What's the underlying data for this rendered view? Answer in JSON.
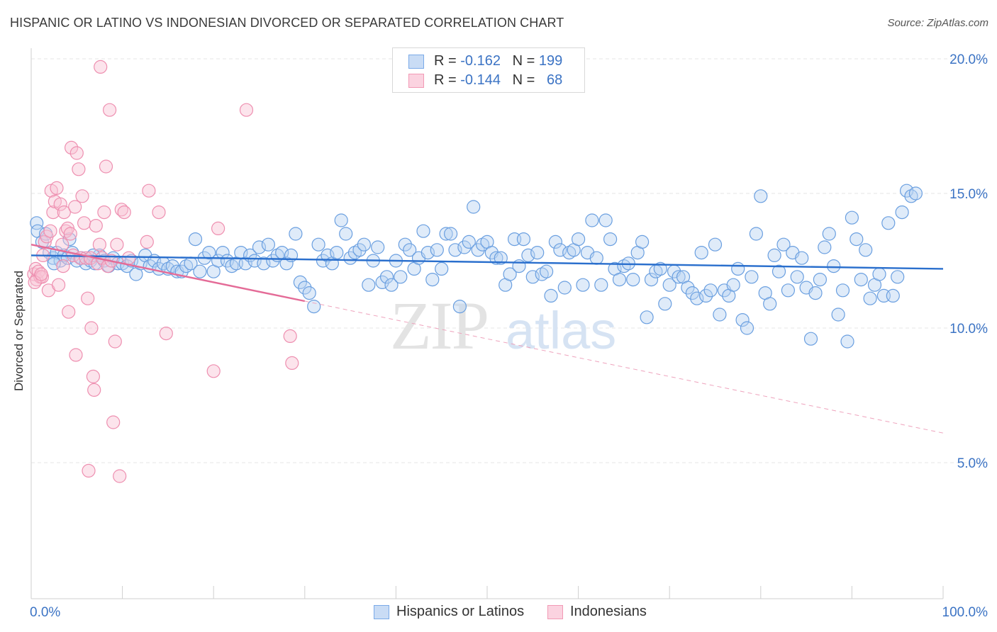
{
  "header": {
    "title": "HISPANIC OR LATINO VS INDONESIAN DIVORCED OR SEPARATED CORRELATION CHART",
    "source": "Source: ZipAtlas.com"
  },
  "watermark": {
    "zip": "ZIP",
    "atlas": "atlas"
  },
  "legend": {
    "r_label": "R =",
    "n_label": "N =",
    "rows": [
      {
        "r": "-0.162",
        "n": "199",
        "color": "#7aaae8"
      },
      {
        "r": "-0.144",
        "n": "68",
        "color": "#f29ab5"
      }
    ]
  },
  "bottom_legend": [
    {
      "label": "Hispanics or Latinos",
      "color": "#7aaae8"
    },
    {
      "label": "Indonesians",
      "color": "#f29ab5"
    }
  ],
  "chart_data": {
    "type": "scatter",
    "title": "HISPANIC OR LATINO VS INDONESIAN DIVORCED OR SEPARATED CORRELATION CHART",
    "xlabel": "",
    "ylabel": "Divorced or Separated",
    "xlim": [
      0,
      100
    ],
    "ylim": [
      0,
      21
    ],
    "x_tick_labels": [
      "0.0%",
      "100.0%"
    ],
    "y_ticks": [
      5,
      10,
      15,
      20
    ],
    "y_tick_labels": [
      "5.0%",
      "10.0%",
      "15.0%",
      "20.0%"
    ],
    "grid": true,
    "legend_position": "top-center",
    "series": [
      {
        "name": "Hispanics or Latinos",
        "color": "#6a9fe0",
        "r": -0.162,
        "n": 199,
        "trend": {
          "x": [
            0,
            100
          ],
          "y": [
            12.7,
            12.2
          ],
          "style": "solid"
        },
        "points": [
          [
            0.6,
            13.9
          ],
          [
            0.7,
            13.6
          ],
          [
            1.2,
            13.2
          ],
          [
            1.6,
            13.5
          ],
          [
            2.0,
            12.8
          ],
          [
            2.4,
            12.6
          ],
          [
            2.8,
            12.8
          ],
          [
            3.2,
            12.5
          ],
          [
            3.6,
            12.7
          ],
          [
            4.0,
            12.6
          ],
          [
            4.5,
            12.8
          ],
          [
            5.0,
            12.5
          ],
          [
            5.5,
            12.6
          ],
          [
            6.0,
            12.4
          ],
          [
            6.5,
            12.5
          ],
          [
            7.0,
            12.4
          ],
          [
            7.5,
            12.7
          ],
          [
            8.0,
            12.5
          ],
          [
            8.5,
            12.3
          ],
          [
            9.0,
            12.6
          ],
          [
            9.5,
            12.4
          ],
          [
            10.0,
            12.4
          ],
          [
            10.5,
            12.3
          ],
          [
            11.0,
            12.5
          ],
          [
            11.5,
            12.0
          ],
          [
            12.0,
            12.4
          ],
          [
            12.5,
            12.7
          ],
          [
            13.0,
            12.3
          ],
          [
            13.5,
            12.5
          ],
          [
            14.0,
            12.2
          ],
          [
            14.5,
            12.4
          ],
          [
            15.0,
            12.2
          ],
          [
            15.5,
            12.3
          ],
          [
            16.0,
            12.1
          ],
          [
            16.5,
            12.1
          ],
          [
            17.0,
            12.3
          ],
          [
            17.5,
            12.4
          ],
          [
            18.0,
            13.3
          ],
          [
            18.5,
            12.1
          ],
          [
            19.0,
            12.6
          ],
          [
            19.5,
            12.8
          ],
          [
            20.0,
            12.1
          ],
          [
            20.5,
            12.5
          ],
          [
            21.0,
            12.8
          ],
          [
            21.5,
            12.5
          ],
          [
            22.0,
            12.3
          ],
          [
            22.5,
            12.4
          ],
          [
            23.0,
            12.8
          ],
          [
            23.5,
            12.4
          ],
          [
            24.0,
            12.7
          ],
          [
            24.5,
            12.5
          ],
          [
            25.0,
            13.0
          ],
          [
            25.5,
            12.4
          ],
          [
            26.0,
            13.1
          ],
          [
            26.5,
            12.5
          ],
          [
            27.0,
            12.7
          ],
          [
            27.5,
            12.8
          ],
          [
            28.0,
            12.4
          ],
          [
            28.5,
            12.7
          ],
          [
            29.0,
            13.5
          ],
          [
            29.5,
            11.7
          ],
          [
            30.0,
            11.5
          ],
          [
            30.5,
            11.3
          ],
          [
            31.0,
            10.8
          ],
          [
            31.5,
            13.1
          ],
          [
            32.0,
            12.5
          ],
          [
            32.5,
            12.7
          ],
          [
            33.0,
            12.4
          ],
          [
            33.5,
            12.8
          ],
          [
            34.0,
            14.0
          ],
          [
            34.5,
            13.5
          ],
          [
            35.0,
            12.6
          ],
          [
            35.5,
            12.8
          ],
          [
            36.0,
            12.9
          ],
          [
            36.5,
            13.1
          ],
          [
            37.0,
            11.6
          ],
          [
            37.5,
            12.5
          ],
          [
            38.0,
            13.0
          ],
          [
            38.5,
            11.7
          ],
          [
            39.0,
            11.9
          ],
          [
            39.5,
            11.6
          ],
          [
            40.0,
            12.5
          ],
          [
            40.5,
            11.9
          ],
          [
            41.0,
            13.1
          ],
          [
            41.5,
            12.9
          ],
          [
            42.0,
            12.2
          ],
          [
            42.5,
            12.6
          ],
          [
            43.0,
            13.6
          ],
          [
            43.5,
            12.8
          ],
          [
            44.0,
            11.8
          ],
          [
            44.5,
            12.9
          ],
          [
            45.0,
            12.2
          ],
          [
            45.5,
            13.5
          ],
          [
            46.0,
            13.5
          ],
          [
            46.5,
            12.9
          ],
          [
            47.0,
            10.8
          ],
          [
            47.5,
            13.0
          ],
          [
            48.0,
            13.2
          ],
          [
            48.5,
            14.5
          ],
          [
            49.0,
            12.9
          ],
          [
            49.5,
            13.1
          ],
          [
            50.0,
            13.2
          ],
          [
            50.5,
            12.8
          ],
          [
            51.0,
            12.6
          ],
          [
            51.5,
            12.6
          ],
          [
            52.0,
            11.6
          ],
          [
            52.5,
            12.0
          ],
          [
            53.0,
            13.3
          ],
          [
            53.5,
            12.3
          ],
          [
            54.0,
            13.3
          ],
          [
            54.5,
            12.7
          ],
          [
            55.0,
            11.9
          ],
          [
            55.5,
            12.8
          ],
          [
            56.0,
            12.0
          ],
          [
            56.5,
            12.1
          ],
          [
            57.0,
            11.2
          ],
          [
            57.5,
            13.2
          ],
          [
            58.0,
            12.9
          ],
          [
            58.5,
            11.5
          ],
          [
            59.0,
            12.8
          ],
          [
            59.5,
            12.9
          ],
          [
            60.0,
            13.3
          ],
          [
            60.5,
            11.6
          ],
          [
            61.0,
            12.8
          ],
          [
            61.5,
            14.0
          ],
          [
            62.0,
            12.6
          ],
          [
            62.5,
            11.6
          ],
          [
            63.0,
            14.0
          ],
          [
            63.5,
            13.3
          ],
          [
            64.0,
            12.2
          ],
          [
            64.5,
            11.8
          ],
          [
            65.0,
            12.3
          ],
          [
            65.5,
            12.4
          ],
          [
            66.0,
            11.8
          ],
          [
            66.5,
            12.8
          ],
          [
            67.0,
            13.2
          ],
          [
            67.5,
            10.4
          ],
          [
            68.0,
            11.8
          ],
          [
            68.5,
            12.1
          ],
          [
            69.0,
            12.2
          ],
          [
            69.5,
            10.9
          ],
          [
            70.0,
            11.6
          ],
          [
            70.5,
            12.1
          ],
          [
            71.0,
            11.9
          ],
          [
            71.5,
            11.9
          ],
          [
            72.0,
            11.5
          ],
          [
            72.5,
            11.3
          ],
          [
            73.0,
            11.1
          ],
          [
            73.5,
            12.8
          ],
          [
            74.0,
            11.2
          ],
          [
            74.5,
            11.4
          ],
          [
            75.0,
            13.1
          ],
          [
            75.5,
            10.5
          ],
          [
            76.0,
            11.4
          ],
          [
            76.5,
            11.2
          ],
          [
            77.0,
            11.6
          ],
          [
            77.5,
            12.2
          ],
          [
            78.0,
            10.3
          ],
          [
            78.5,
            10.0
          ],
          [
            79.0,
            11.9
          ],
          [
            79.5,
            13.5
          ],
          [
            80.0,
            14.9
          ],
          [
            80.5,
            11.3
          ],
          [
            81.0,
            10.9
          ],
          [
            81.5,
            12.7
          ],
          [
            82.0,
            12.1
          ],
          [
            82.5,
            13.1
          ],
          [
            83.0,
            11.4
          ],
          [
            83.5,
            12.8
          ],
          [
            84.0,
            11.9
          ],
          [
            84.5,
            12.6
          ],
          [
            85.0,
            11.5
          ],
          [
            85.5,
            9.6
          ],
          [
            86.0,
            11.3
          ],
          [
            86.5,
            11.8
          ],
          [
            87.0,
            13.0
          ],
          [
            87.5,
            13.5
          ],
          [
            88.0,
            12.3
          ],
          [
            88.5,
            10.5
          ],
          [
            89.0,
            11.4
          ],
          [
            89.5,
            9.5
          ],
          [
            90.0,
            14.1
          ],
          [
            90.5,
            13.3
          ],
          [
            91.0,
            11.8
          ],
          [
            91.5,
            12.9
          ],
          [
            92.0,
            11.1
          ],
          [
            92.5,
            11.6
          ],
          [
            93.0,
            12.0
          ],
          [
            93.5,
            11.2
          ],
          [
            94.0,
            13.9
          ],
          [
            94.5,
            11.2
          ],
          [
            95.0,
            11.9
          ],
          [
            95.5,
            14.3
          ],
          [
            96.0,
            15.1
          ],
          [
            96.5,
            14.9
          ],
          [
            97.0,
            15.0
          ],
          [
            2.5,
            12.4
          ],
          [
            4.2,
            13.3
          ],
          [
            6.8,
            12.7
          ]
        ]
      },
      {
        "name": "Indonesians",
        "color": "#f08db0",
        "r": -0.144,
        "n": 68,
        "trend": {
          "x": [
            0,
            30,
            100
          ],
          "y": [
            13.1,
            11.0,
            6.1
          ],
          "style": "solid-then-dashed",
          "solid_until": 30
        },
        "points": [
          [
            0.3,
            12.0
          ],
          [
            0.5,
            12.2
          ],
          [
            0.6,
            11.8
          ],
          [
            0.8,
            12.1
          ],
          [
            1.0,
            11.9
          ],
          [
            1.2,
            11.9
          ],
          [
            1.3,
            12.7
          ],
          [
            1.5,
            13.2
          ],
          [
            1.7,
            13.4
          ],
          [
            1.9,
            11.4
          ],
          [
            2.1,
            13.6
          ],
          [
            2.2,
            15.1
          ],
          [
            2.4,
            14.3
          ],
          [
            2.6,
            14.7
          ],
          [
            2.8,
            15.2
          ],
          [
            3.0,
            11.6
          ],
          [
            3.2,
            14.6
          ],
          [
            3.4,
            13.1
          ],
          [
            3.5,
            12.3
          ],
          [
            3.6,
            14.3
          ],
          [
            3.8,
            13.6
          ],
          [
            4.0,
            13.7
          ],
          [
            4.1,
            10.6
          ],
          [
            4.3,
            13.5
          ],
          [
            4.4,
            16.7
          ],
          [
            4.6,
            12.7
          ],
          [
            4.8,
            14.5
          ],
          [
            4.9,
            9.0
          ],
          [
            5.0,
            16.5
          ],
          [
            5.2,
            15.9
          ],
          [
            5.4,
            12.6
          ],
          [
            5.6,
            14.9
          ],
          [
            5.8,
            13.9
          ],
          [
            6.0,
            12.6
          ],
          [
            6.2,
            11.1
          ],
          [
            6.3,
            4.7
          ],
          [
            6.5,
            12.6
          ],
          [
            6.6,
            10.0
          ],
          [
            6.8,
            8.2
          ],
          [
            6.9,
            7.7
          ],
          [
            7.1,
            13.8
          ],
          [
            7.3,
            12.4
          ],
          [
            7.5,
            13.1
          ],
          [
            7.6,
            19.7
          ],
          [
            7.8,
            12.6
          ],
          [
            8.0,
            14.3
          ],
          [
            8.2,
            16.0
          ],
          [
            8.4,
            12.3
          ],
          [
            8.6,
            18.1
          ],
          [
            8.8,
            12.5
          ],
          [
            9.0,
            6.5
          ],
          [
            9.2,
            9.5
          ],
          [
            9.4,
            13.1
          ],
          [
            9.7,
            4.5
          ],
          [
            9.9,
            14.4
          ],
          [
            10.2,
            14.3
          ],
          [
            10.7,
            12.6
          ],
          [
            12.7,
            13.2
          ],
          [
            12.9,
            15.1
          ],
          [
            14.0,
            14.3
          ],
          [
            14.8,
            9.8
          ],
          [
            20.5,
            13.7
          ],
          [
            20.0,
            8.4
          ],
          [
            23.6,
            18.1
          ],
          [
            28.4,
            9.7
          ],
          [
            28.6,
            8.7
          ],
          [
            0.4,
            11.7
          ],
          [
            1.1,
            12.0
          ]
        ]
      }
    ]
  }
}
